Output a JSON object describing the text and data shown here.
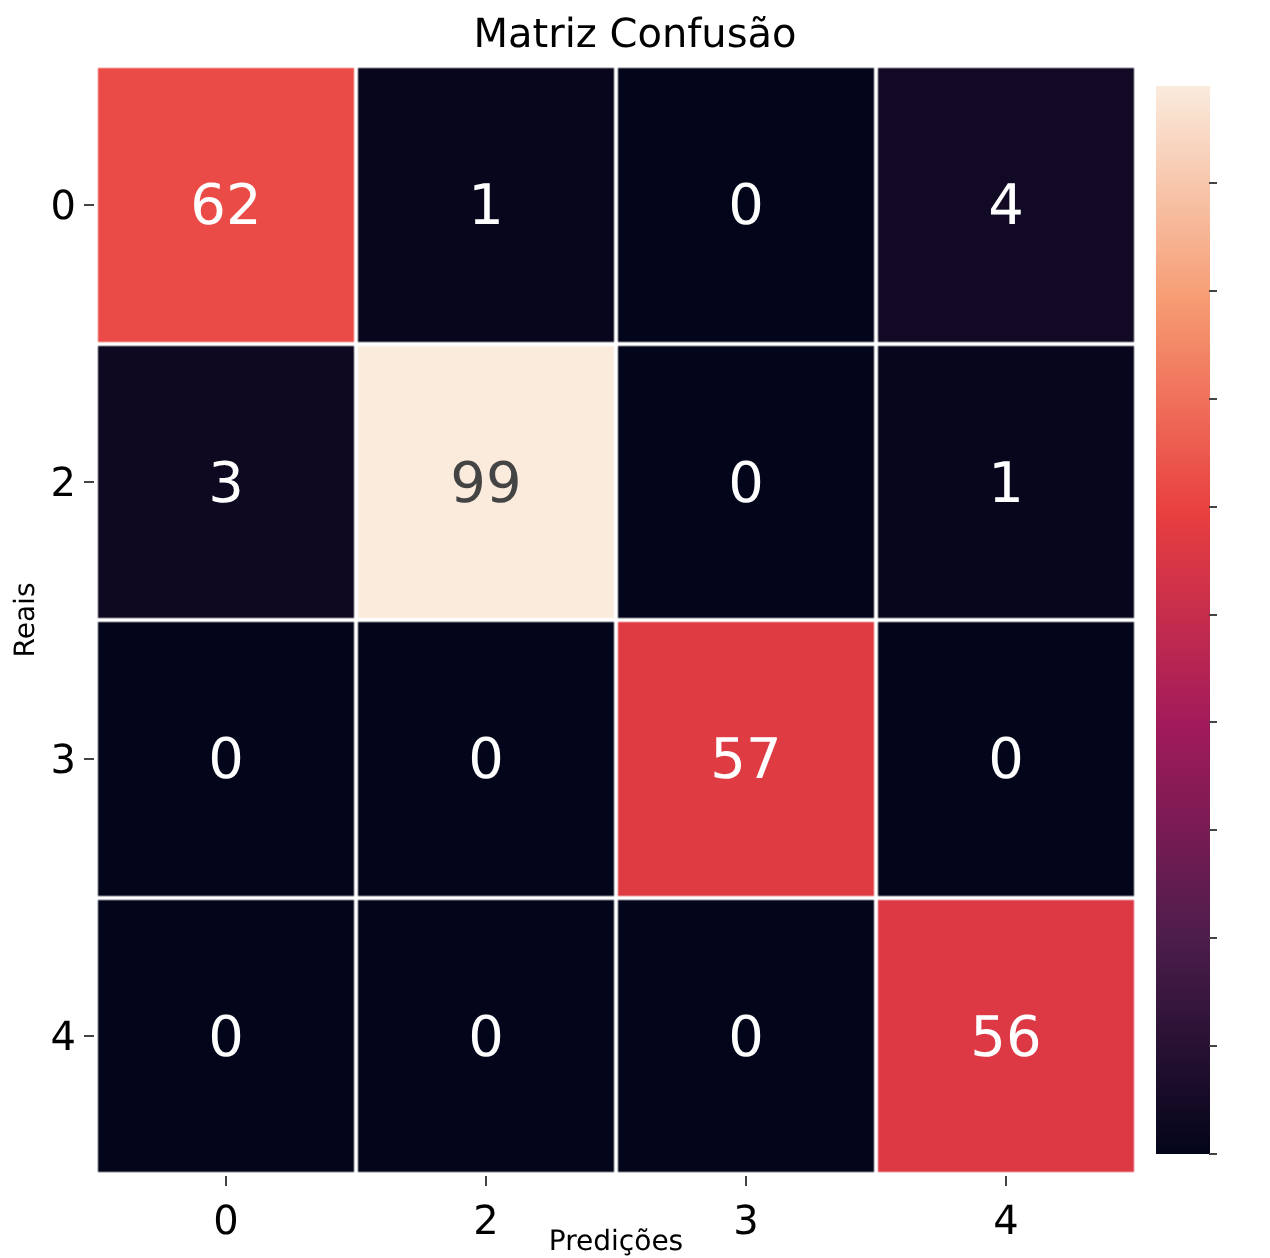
{
  "chart_data": {
    "type": "heatmap",
    "title": "Matriz Confusão",
    "xlabel": "Predições",
    "ylabel": "Reais",
    "categories": [
      "0",
      "2",
      "3",
      "4"
    ],
    "y_categories": [
      "0",
      "2",
      "3",
      "4"
    ],
    "cells": [
      [
        62,
        1,
        0,
        4
      ],
      [
        3,
        99,
        0,
        1
      ],
      [
        0,
        0,
        57,
        0
      ],
      [
        0,
        0,
        0,
        56
      ]
    ],
    "data_labels": true
  }
}
